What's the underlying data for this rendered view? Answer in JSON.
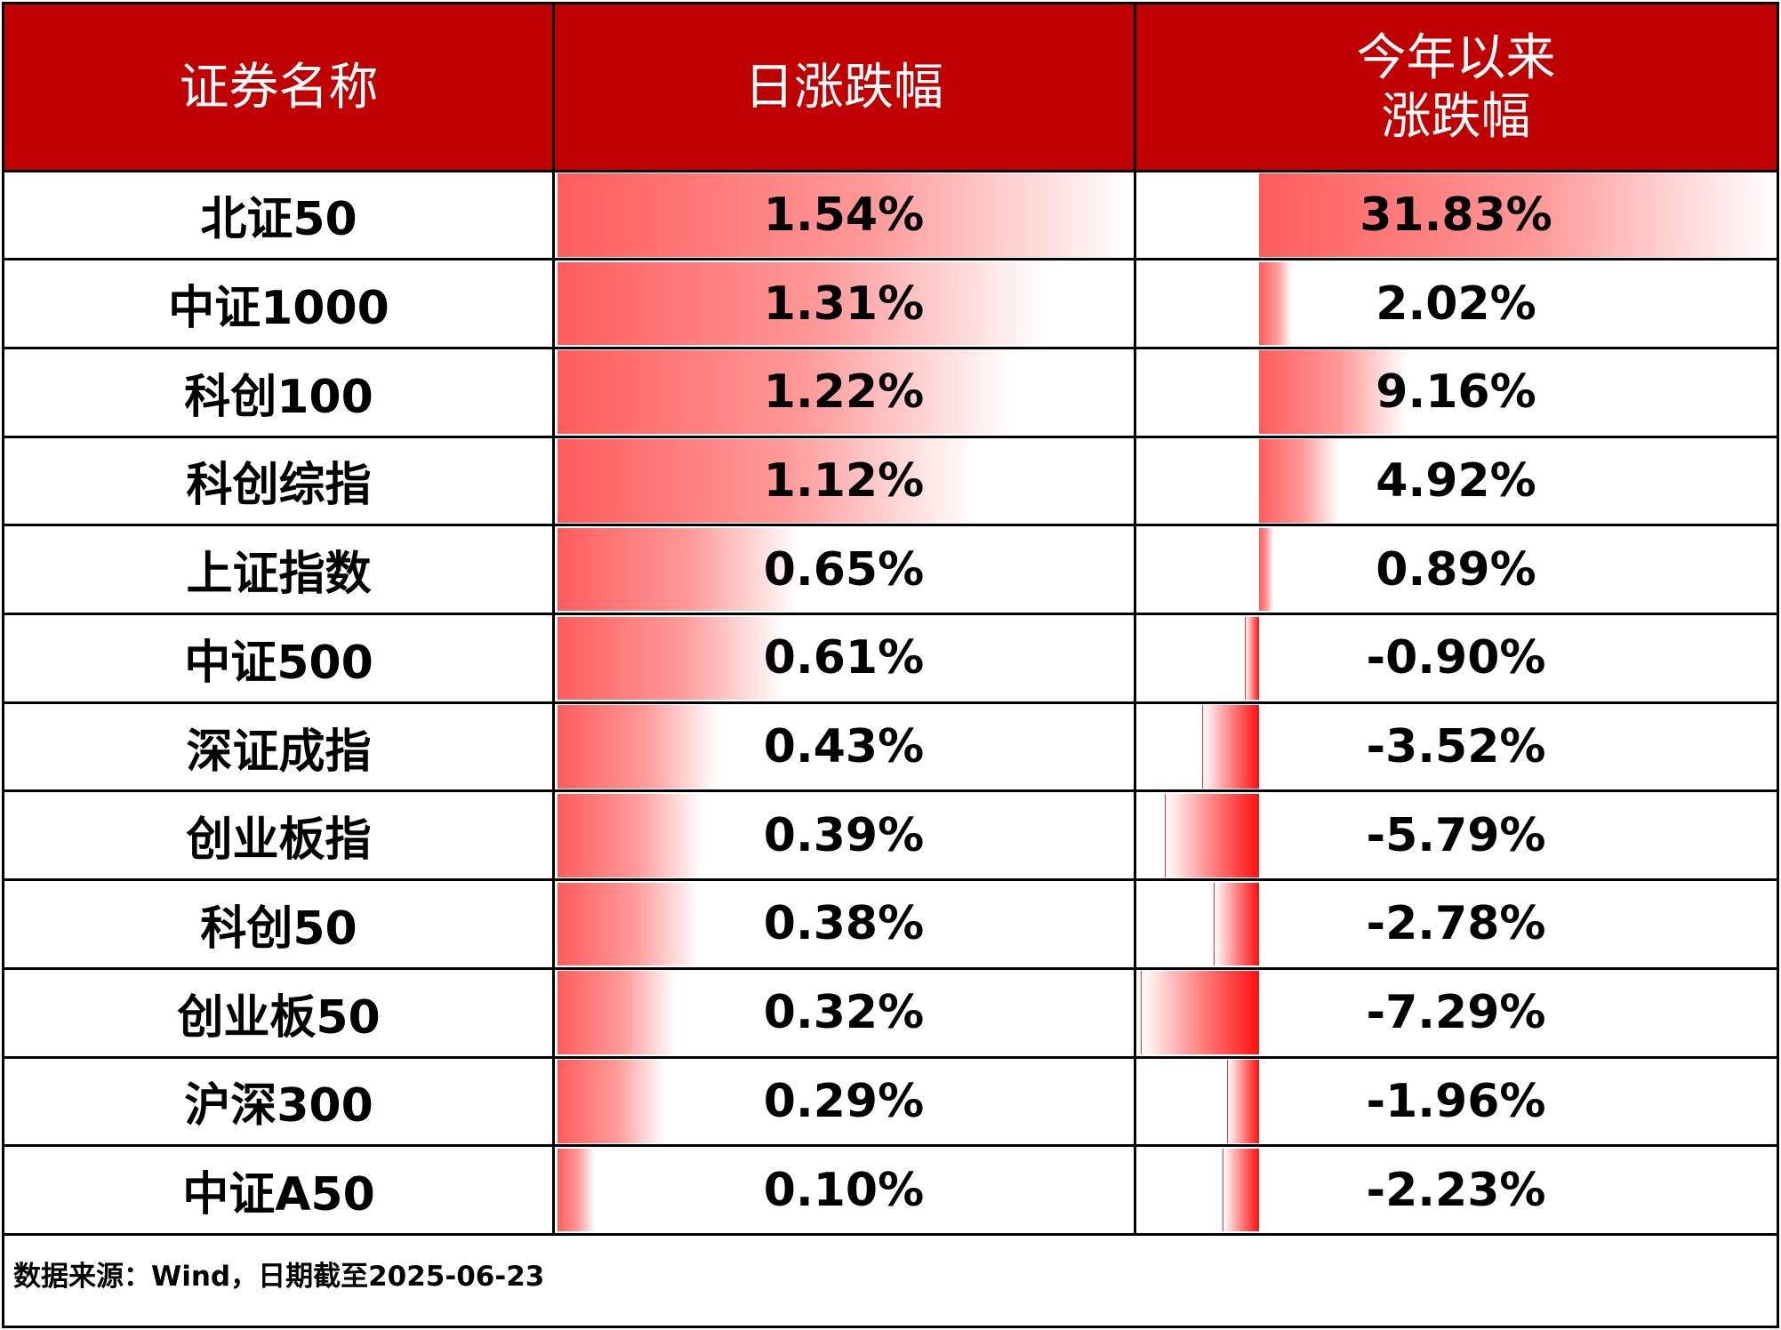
{
  "table": {
    "header": [
      "证券名称",
      "日涨跌幅",
      "今年以来涨跌幅"
    ],
    "rows": [
      [
        "北证50",
        "1.54%",
        "31.83%"
      ],
      [
        "中证1000",
        "1.31%",
        "2.02%"
      ],
      [
        "科创100",
        "1.22%",
        "9.16%"
      ],
      [
        "科创综指",
        "1.12%",
        "4.92%"
      ],
      [
        "上证指数",
        "0.65%",
        "0.89%"
      ],
      [
        "中证500",
        "0.61%",
        "-0.90%"
      ],
      [
        "深证成指",
        "0.43%",
        "-3.52%"
      ],
      [
        "创业板指",
        "0.39%",
        "-5.79%"
      ],
      [
        "科创50",
        "0.38%",
        "-2.78%"
      ],
      [
        "创业板50",
        "0.32%",
        "-7.29%"
      ],
      [
        "沪深300",
        "0.29%",
        "-1.96%"
      ],
      [
        "中证A50",
        "0.10%",
        "-2.23%"
      ]
    ]
  },
  "footer": {
    "source": "数据来源：Wind，日期截至2025-06-23"
  }
}
